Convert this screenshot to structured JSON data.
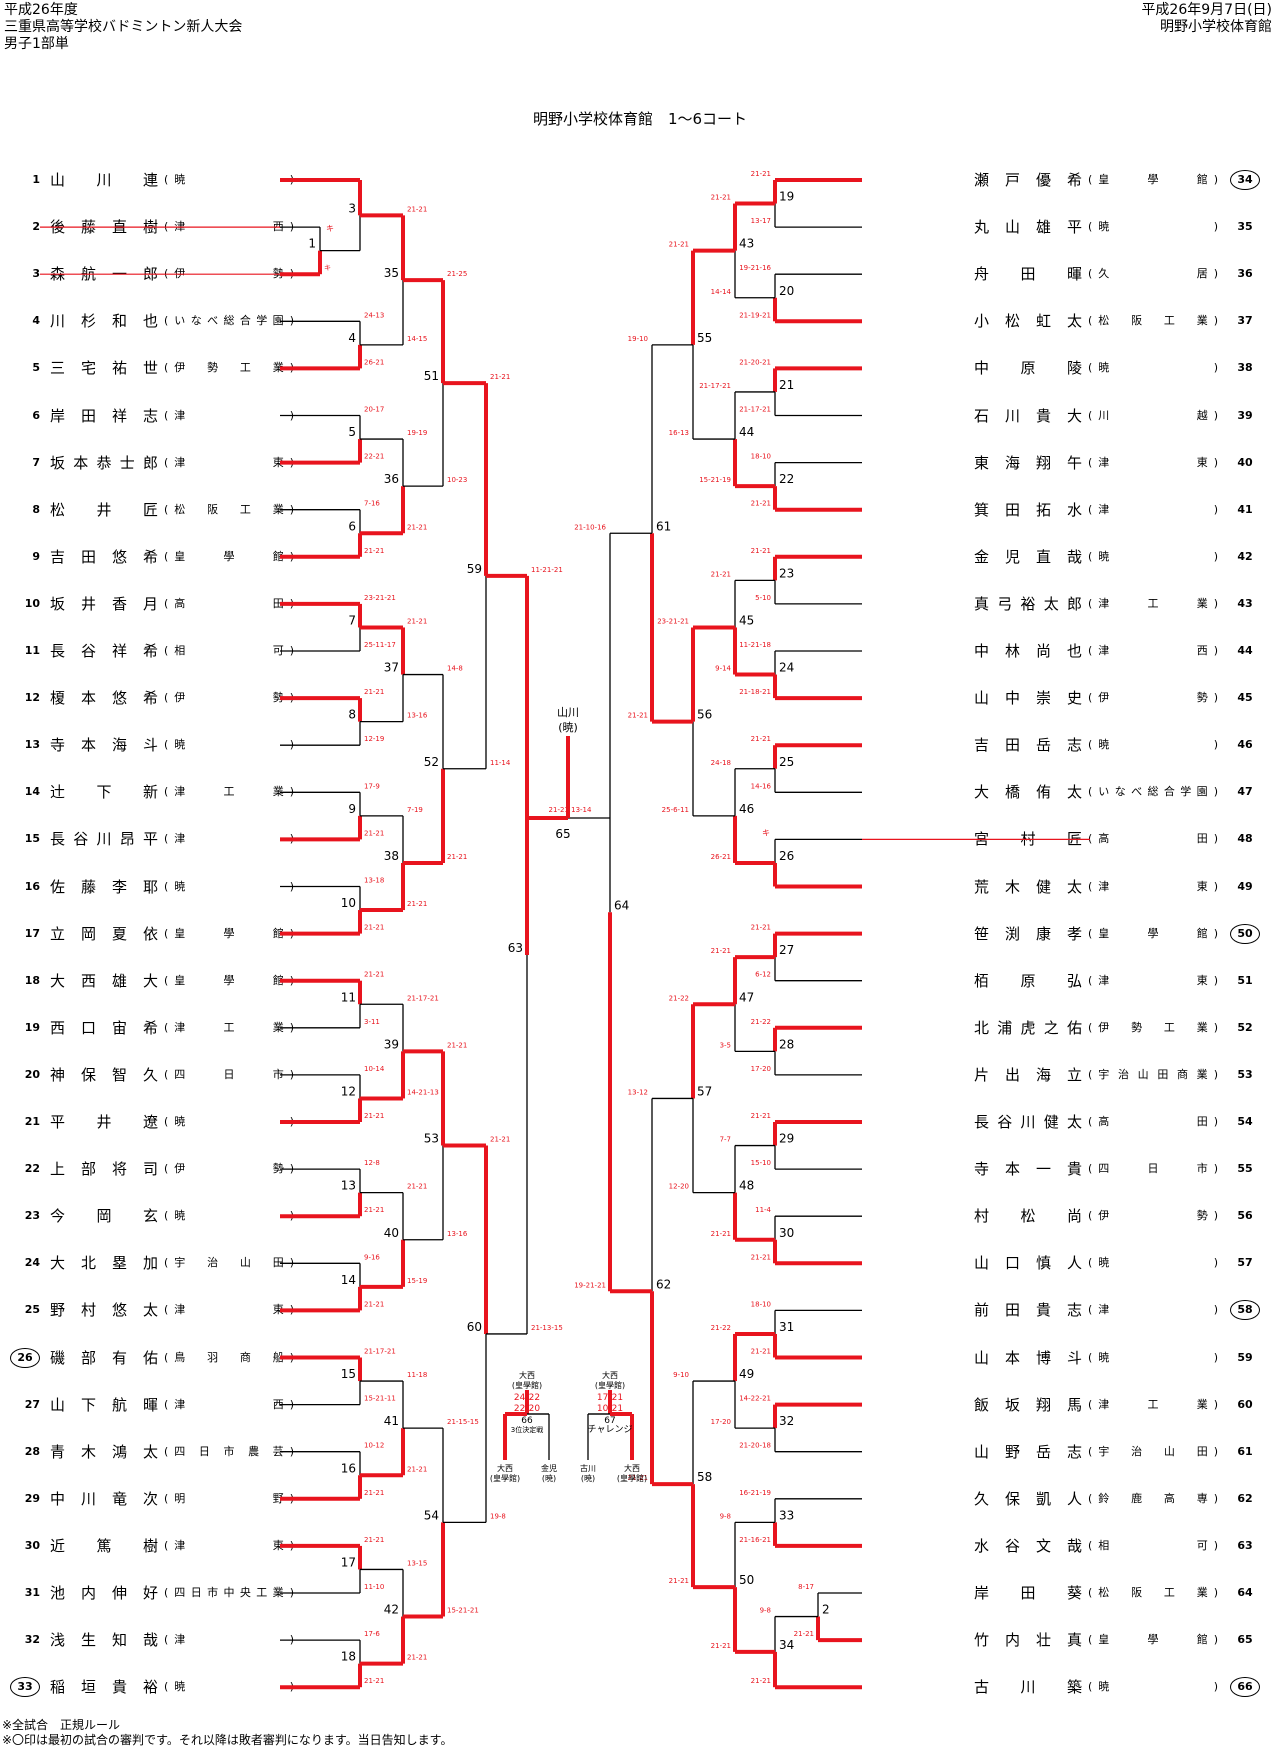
{
  "header": {
    "left": [
      "平成26年度",
      "三重県高等学校バドミントン新人大会",
      "男子1部単"
    ],
    "right": [
      "平成26年9月7日(日)",
      "明野小学校体育館"
    ]
  },
  "venue_title": "明野小学校体育館　1〜6コート",
  "footer": [
    "※全試合　正規ルール",
    "※〇印は最初の試合の審判です。それ以降は敗者審判になります。当日告知します。"
  ],
  "left_players": [
    {
      "num": "1",
      "name": "山川　連",
      "school": "暁"
    },
    {
      "num": "2",
      "name": "後藤直樹",
      "school": "津西",
      "withdrawn": true
    },
    {
      "num": "3",
      "name": "森航一郎",
      "school": "伊勢",
      "withdrawn": true
    },
    {
      "num": "4",
      "name": "川杉和也",
      "school": "いなべ総合学園"
    },
    {
      "num": "5",
      "name": "三宅祐世",
      "school": "伊勢工業"
    },
    {
      "num": "6",
      "name": "岸田祥志",
      "school": "津"
    },
    {
      "num": "7",
      "name": "坂本恭士郎",
      "school": "津東"
    },
    {
      "num": "8",
      "name": "松井　匠",
      "school": "松阪工業"
    },
    {
      "num": "9",
      "name": "吉田悠希",
      "school": "皇學館"
    },
    {
      "num": "10",
      "name": "坂井香月",
      "school": "高田"
    },
    {
      "num": "11",
      "name": "長谷祥希",
      "school": "相可"
    },
    {
      "num": "12",
      "name": "榎本悠希",
      "school": "伊勢"
    },
    {
      "num": "13",
      "name": "寺本海斗",
      "school": "暁"
    },
    {
      "num": "14",
      "name": "辻　下　新",
      "school": "津工業"
    },
    {
      "num": "15",
      "name": "長谷川昂平",
      "school": "津"
    },
    {
      "num": "16",
      "name": "佐藤李耶",
      "school": "暁"
    },
    {
      "num": "17",
      "name": "立岡夏依",
      "school": "皇學館"
    },
    {
      "num": "18",
      "name": "大西雄大",
      "school": "皇學館"
    },
    {
      "num": "19",
      "name": "西口宙希",
      "school": "津工業"
    },
    {
      "num": "20",
      "name": "神保智久",
      "school": "四日市"
    },
    {
      "num": "21",
      "name": "平井　遼",
      "school": "暁"
    },
    {
      "num": "22",
      "name": "上部将司",
      "school": "伊勢"
    },
    {
      "num": "23",
      "name": "今岡　玄",
      "school": "暁"
    },
    {
      "num": "24",
      "name": "大北塁加",
      "school": "宇治山田"
    },
    {
      "num": "25",
      "name": "野村悠太",
      "school": "津東"
    },
    {
      "num": "26",
      "name": "磯部有佑",
      "school": "鳥羽商船",
      "circle": true
    },
    {
      "num": "27",
      "name": "山下航暉",
      "school": "津西"
    },
    {
      "num": "28",
      "name": "青木鴻太",
      "school": "四日市農芸"
    },
    {
      "num": "29",
      "name": "中川竜次",
      "school": "明野"
    },
    {
      "num": "30",
      "name": "近　篤　樹",
      "school": "津東"
    },
    {
      "num": "31",
      "name": "池内伸好",
      "school": "四日市中央工業"
    },
    {
      "num": "32",
      "name": "浅生知哉",
      "school": "津"
    },
    {
      "num": "33",
      "name": "稲垣貴裕",
      "school": "暁",
      "circle": true
    }
  ],
  "right_players": [
    {
      "num": "34",
      "name": "瀬戸優希",
      "school": "皇學館",
      "circle": true
    },
    {
      "num": "35",
      "name": "丸山雄平",
      "school": "暁"
    },
    {
      "num": "36",
      "name": "舟　田　暉",
      "school": "久居"
    },
    {
      "num": "37",
      "name": "小松虹太",
      "school": "松阪工業"
    },
    {
      "num": "38",
      "name": "中　原　陵",
      "school": "暁"
    },
    {
      "num": "39",
      "name": "石川貴大",
      "school": "川越"
    },
    {
      "num": "40",
      "name": "東海翔午",
      "school": "津東"
    },
    {
      "num": "41",
      "name": "箕田拓水",
      "school": "津"
    },
    {
      "num": "42",
      "name": "金児直哉",
      "school": "暁"
    },
    {
      "num": "43",
      "name": "真弓裕太郎",
      "school": "津工業"
    },
    {
      "num": "44",
      "name": "中林尚也",
      "school": "津西"
    },
    {
      "num": "45",
      "name": "山中崇史",
      "school": "伊勢"
    },
    {
      "num": "46",
      "name": "吉田岳志",
      "school": "暁"
    },
    {
      "num": "47",
      "name": "大橋侑太",
      "school": "いなべ総合学園"
    },
    {
      "num": "48",
      "name": "宮　村　匠",
      "school": "高田",
      "withdrawn": true
    },
    {
      "num": "49",
      "name": "荒木健太",
      "school": "津東"
    },
    {
      "num": "50",
      "name": "笹渕康孝",
      "school": "皇學館",
      "circle": true
    },
    {
      "num": "51",
      "name": "栢　原　弘",
      "school": "津東"
    },
    {
      "num": "52",
      "name": "北浦虎之佑",
      "school": "伊勢工業"
    },
    {
      "num": "53",
      "name": "片出海立",
      "school": "宇治山田商業"
    },
    {
      "num": "54",
      "name": "長谷川健太",
      "school": "高田"
    },
    {
      "num": "55",
      "name": "寺本一貴",
      "school": "四日市"
    },
    {
      "num": "56",
      "name": "村　松　尚",
      "school": "伊勢"
    },
    {
      "num": "57",
      "name": "山口慎人",
      "school": "暁"
    },
    {
      "num": "58",
      "name": "前田貴志",
      "school": "津",
      "circle": true
    },
    {
      "num": "59",
      "name": "山本博斗",
      "school": "暁"
    },
    {
      "num": "60",
      "name": "飯坂翔馬",
      "school": "津工業"
    },
    {
      "num": "61",
      "name": "山野岳志",
      "school": "宇治山田"
    },
    {
      "num": "62",
      "name": "久保凱人",
      "school": "鈴鹿高専"
    },
    {
      "num": "63",
      "name": "水谷文哉",
      "school": "相可"
    },
    {
      "num": "64",
      "name": "岸田　葵",
      "school": "松阪工業"
    },
    {
      "num": "65",
      "name": "竹内壮真",
      "school": "皇學館"
    },
    {
      "num": "66",
      "name": "古川　築",
      "school": "暁",
      "circle": true
    }
  ],
  "bracket": {
    "champion_label": [
      "山川",
      "(暁)"
    ],
    "final_match": "65",
    "final_score": "21-21 13-14",
    "third_place": {
      "match": "66",
      "label": "3位決定戦",
      "scores": [
        "24-22",
        "22-20"
      ],
      "left": [
        "大西",
        "(皇學館)"
      ],
      "right": [
        "金児",
        "(暁)"
      ],
      "top": [
        "大西",
        "(皇學館)"
      ]
    },
    "challenge": {
      "match": "67",
      "label": "チャレンジ",
      "scores": [
        "17-21",
        "10-21"
      ],
      "left": [
        "古川",
        "(暁)"
      ],
      "right": [
        "大西",
        "(皇學館)"
      ],
      "top": [
        "大西",
        "(皇學館)"
      ]
    },
    "colors": {
      "win": "#e8141e",
      "line": "#000000"
    }
  }
}
